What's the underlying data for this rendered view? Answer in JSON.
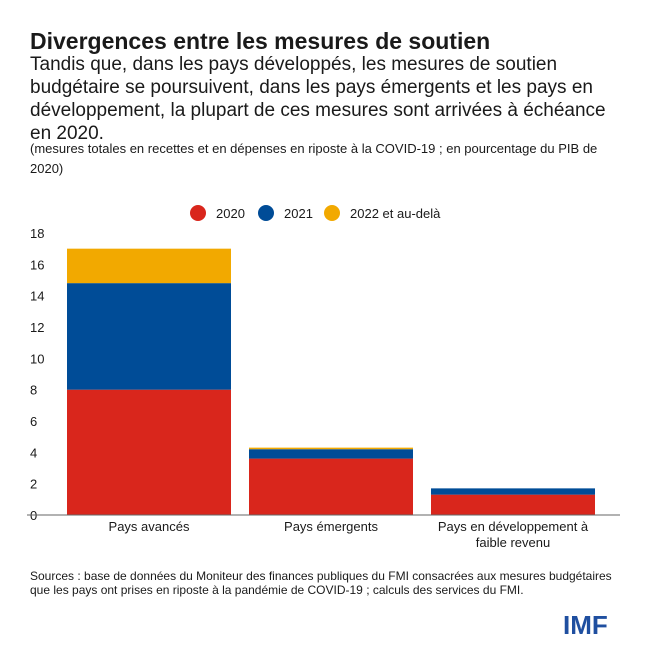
{
  "title": "Divergences entre les mesures de soutien",
  "subtitle": "Tandis que, dans les pays développés, les mesures de soutien budgétaire se poursuivent, dans les pays émergents et les pays en développement, la plupart de ces mesures sont arrivées à échéance en 2020.",
  "note": "(mesures totales en recettes et en dépenses en riposte à la COVID-19 ; en pourcentage du PIB de 2020)",
  "source": "Sources : base de données du Moniteur des finances publiques du FMI consacrées aux mesures budgétaires que les pays ont prises en riposte à la pandémie de COVID-19 ; calculs des services du FMI.",
  "logo_text": "IMF",
  "chart_data": {
    "type": "bar",
    "stacked": true,
    "categories": [
      "Pays avancés",
      "Pays émergents",
      "Pays en développement à faible revenu"
    ],
    "category_lines": [
      [
        "Pays avancés"
      ],
      [
        "Pays émergents"
      ],
      [
        "Pays en développement à",
        "faible revenu"
      ]
    ],
    "series": [
      {
        "name": "2020",
        "color": "#d9261c",
        "values": [
          8.0,
          3.6,
          1.3
        ]
      },
      {
        "name": "2021",
        "color": "#004c97",
        "values": [
          6.8,
          0.6,
          0.4
        ]
      },
      {
        "name": "2022 et au-delà",
        "color": "#f2a900",
        "values": [
          2.2,
          0.1,
          0.0
        ]
      }
    ],
    "ylim": [
      0,
      18
    ],
    "yticks": [
      0,
      2,
      4,
      6,
      8,
      10,
      12,
      14,
      16,
      18
    ],
    "xlabel": "",
    "ylabel": "",
    "legend_position": "top-center",
    "grid": false
  }
}
